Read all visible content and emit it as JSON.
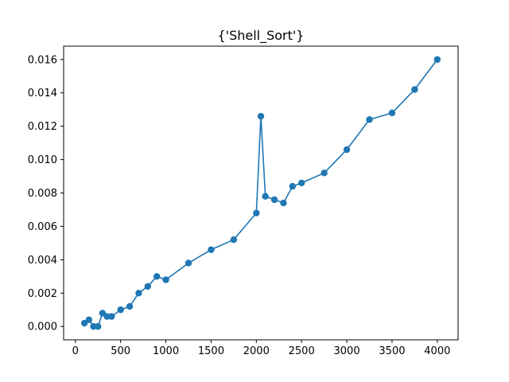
{
  "chart_data": {
    "type": "line",
    "title": "{'Shell_Sort'}",
    "xlabel": "",
    "ylabel": "",
    "xlim": [
      -130,
      4230
    ],
    "ylim": [
      -0.0008,
      0.0168
    ],
    "xticks": [
      0,
      500,
      1000,
      1500,
      2000,
      2500,
      3000,
      3500,
      4000
    ],
    "xtick_labels": [
      "0",
      "500",
      "1000",
      "1500",
      "2000",
      "2500",
      "3000",
      "3500",
      "4000"
    ],
    "yticks": [
      0,
      0.002,
      0.004,
      0.006,
      0.008,
      0.01,
      0.012,
      0.014,
      0.016
    ],
    "ytick_labels": [
      "0.000",
      "0.002",
      "0.004",
      "0.006",
      "0.008",
      "0.010",
      "0.012",
      "0.014",
      "0.016"
    ],
    "grid": false,
    "color": "#1f77b4",
    "marker": "circle",
    "x": [
      100,
      150,
      200,
      250,
      300,
      350,
      400,
      500,
      600,
      700,
      800,
      900,
      1000,
      1250,
      1500,
      1750,
      2000,
      2050,
      2100,
      2200,
      2300,
      2400,
      2500,
      2750,
      3000,
      3250,
      3500,
      3750,
      4000
    ],
    "y": [
      0.0002,
      0.0004,
      0.0,
      0.0,
      0.0008,
      0.0006,
      0.0006,
      0.001,
      0.0012,
      0.002,
      0.0024,
      0.003,
      0.0028,
      0.0038,
      0.0046,
      0.0052,
      0.0068,
      0.0126,
      0.0078,
      0.0076,
      0.0074,
      0.0084,
      0.0086,
      0.0092,
      0.0106,
      0.0124,
      0.0128,
      0.0142,
      0.016
    ]
  }
}
